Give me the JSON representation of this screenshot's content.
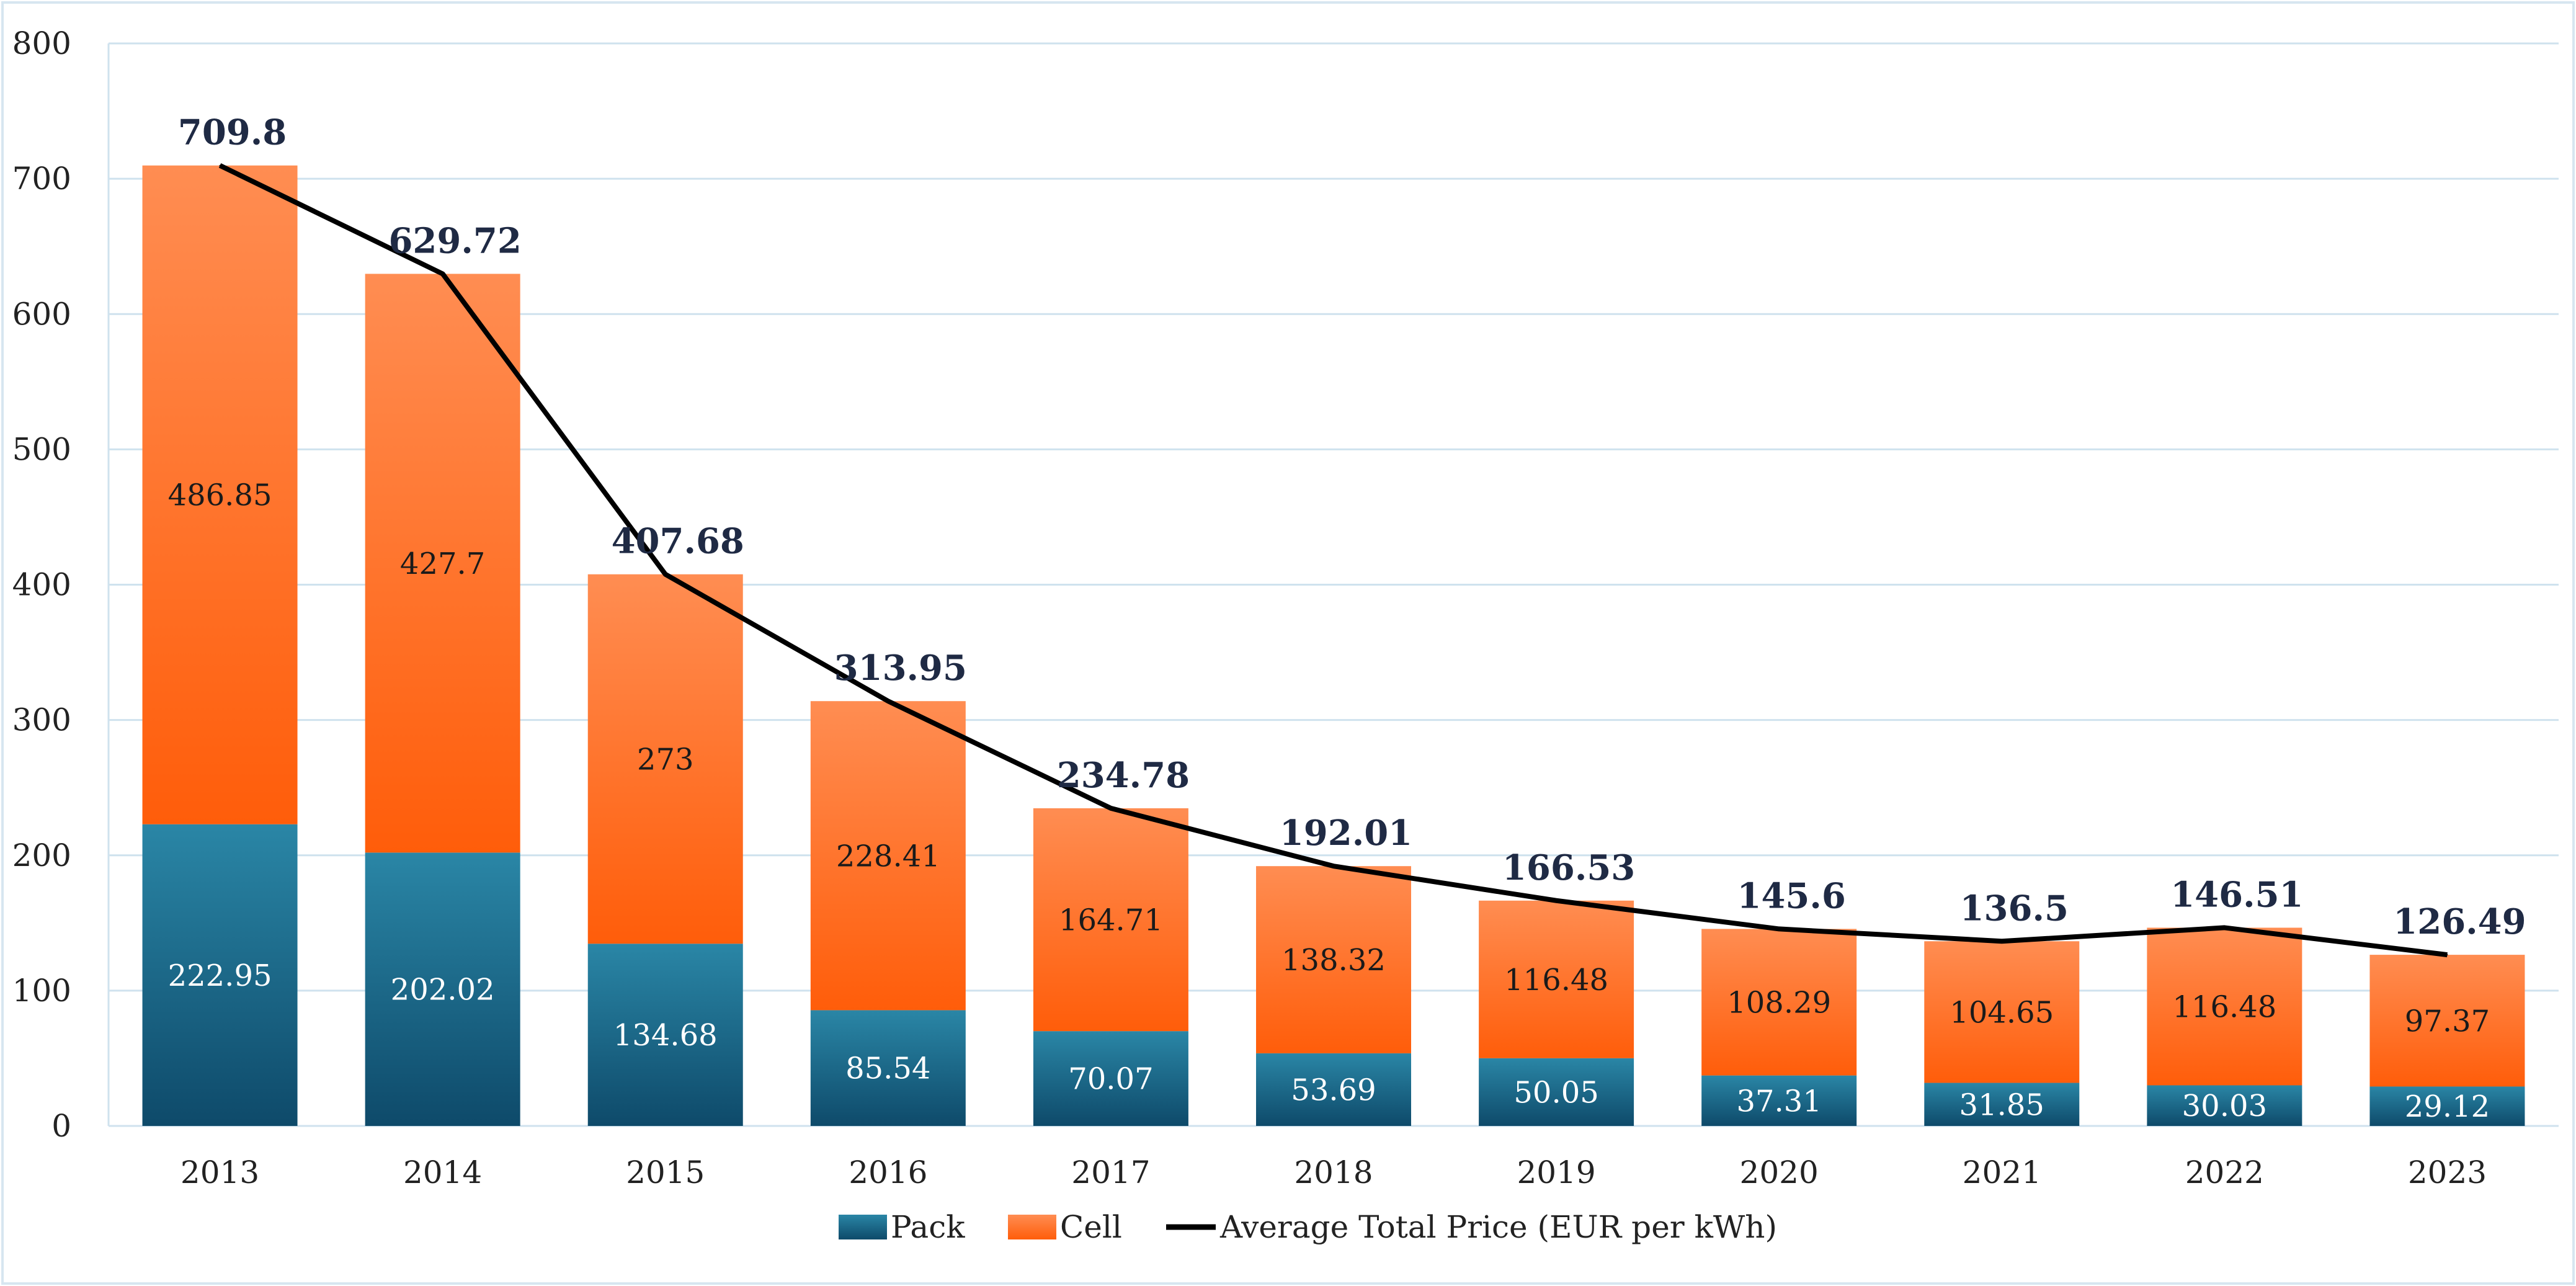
{
  "chart_data": {
    "type": "bar",
    "stacked": true,
    "title": "",
    "xlabel": "",
    "ylabel": "",
    "ylim": [
      0,
      800
    ],
    "yticks": [
      0,
      100,
      200,
      300,
      400,
      500,
      600,
      700,
      800
    ],
    "grid": true,
    "legend_position": "bottom",
    "categories": [
      "2013",
      "2014",
      "2015",
      "2016",
      "2017",
      "2018",
      "2019",
      "2020",
      "2021",
      "2022",
      "2023"
    ],
    "series": [
      {
        "name": "Pack",
        "kind": "bar",
        "values": [
          222.95,
          202.02,
          134.68,
          85.54,
          70.07,
          53.69,
          50.05,
          37.31,
          31.85,
          30.03,
          29.12
        ],
        "color_top": "#2a86a6",
        "color_bottom": "#0e4a6a"
      },
      {
        "name": "Cell",
        "kind": "bar",
        "values": [
          486.85,
          427.7,
          273,
          228.41,
          164.71,
          138.32,
          116.48,
          108.29,
          104.65,
          116.48,
          97.37
        ],
        "color_top": "#ff8d52",
        "color_bottom": "#ff5d0a"
      },
      {
        "name": "Average Total Price (EUR per kWh)",
        "kind": "line",
        "values": [
          709.8,
          629.72,
          407.68,
          313.95,
          234.78,
          192.01,
          166.53,
          145.6,
          136.5,
          146.51,
          126.49
        ],
        "color": "#000000"
      }
    ]
  }
}
